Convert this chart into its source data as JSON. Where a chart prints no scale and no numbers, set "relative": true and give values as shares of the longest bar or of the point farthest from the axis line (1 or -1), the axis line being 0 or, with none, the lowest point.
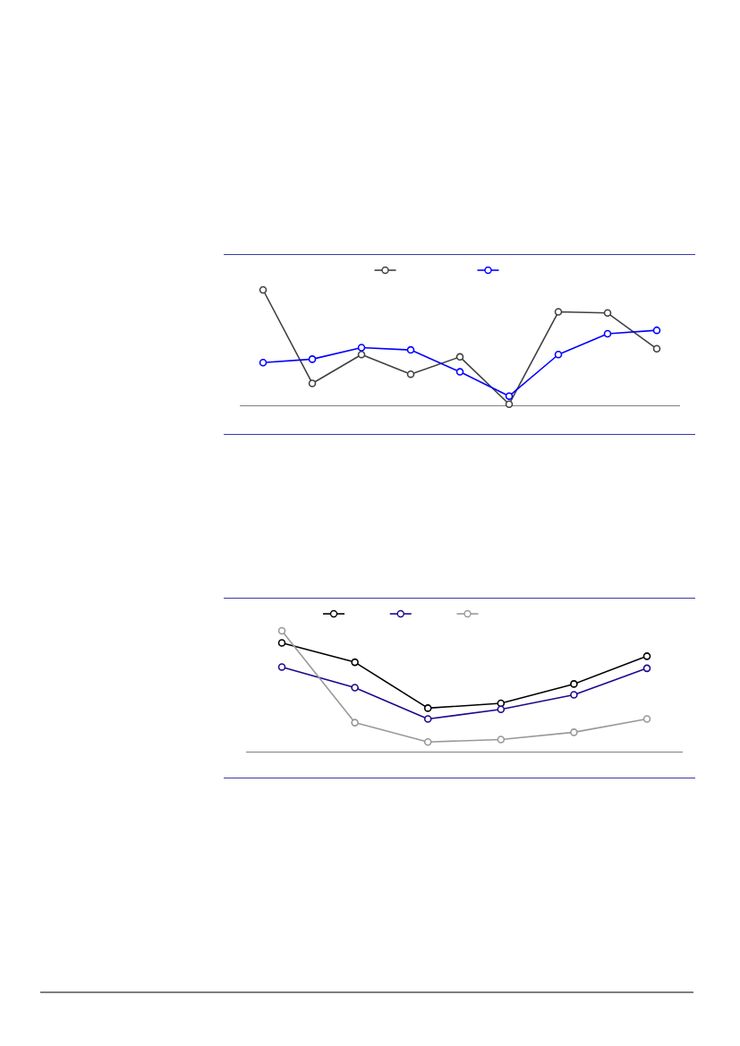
{
  "chart_data": [
    {
      "type": "line",
      "relative": true,
      "categories": [
        null,
        null,
        null,
        null,
        null,
        null,
        null,
        null,
        null
      ],
      "marker": "circle",
      "line_style": "solid",
      "series": [
        {
          "color": "#404040",
          "values": [
            1,
            0.19,
            0.44,
            0.27,
            0.42,
            0.01,
            0.81,
            0.8,
            0.49
          ]
        },
        {
          "color": "#0000ff",
          "values": [
            0.37,
            0.4,
            0.5,
            0.48,
            0.29,
            0.08,
            0.44,
            0.62,
            0.65
          ]
        }
      ]
    },
    {
      "type": "line",
      "relative": true,
      "categories": [
        null,
        null,
        null,
        null,
        null,
        null
      ],
      "marker": "circle",
      "line_style": "solid",
      "series": [
        {
          "color": "#000000",
          "values": [
            0.9,
            0.74,
            0.36,
            0.4,
            0.56,
            0.79
          ]
        },
        {
          "color": "#1a0a8c",
          "values": [
            0.7,
            0.53,
            0.27,
            0.35,
            0.47,
            0.69
          ]
        },
        {
          "color": "#999999",
          "values": [
            1,
            0.24,
            0.08,
            0.1,
            0.16,
            0.27
          ]
        }
      ]
    }
  ]
}
